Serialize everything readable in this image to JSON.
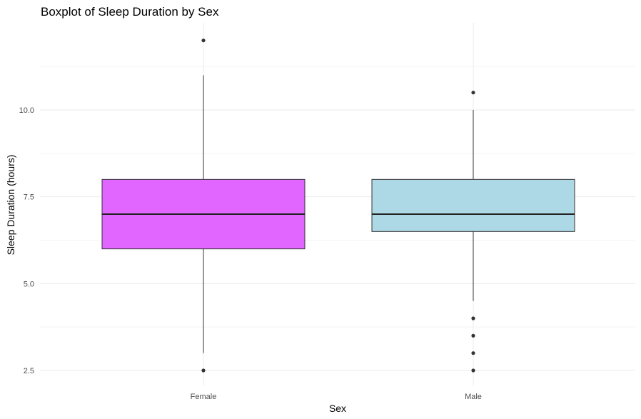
{
  "chart_data": {
    "type": "boxplot",
    "title": "Boxplot of Sleep Duration by Sex",
    "xlabel": "Sex",
    "ylabel": "Sleep Duration (hours)",
    "categories": [
      "Female",
      "Male"
    ],
    "yticks": [
      2.5,
      5.0,
      7.5,
      10.0
    ],
    "ytick_labels": [
      "2.5",
      "5.0",
      "7.5",
      "10.0"
    ],
    "ylim": [
      2.2,
      12.5
    ],
    "grid": true,
    "legend": "none",
    "boxes": [
      {
        "category": "Female",
        "color": "#e066ff",
        "whisker_low": 3.0,
        "q1": 6.0,
        "median": 7.0,
        "q3": 8.0,
        "whisker_high": 11.0,
        "outliers": [
          12.0,
          2.5
        ]
      },
      {
        "category": "Male",
        "color": "#add8e6",
        "whisker_low": 4.5,
        "q1": 6.5,
        "median": 7.0,
        "q3": 8.0,
        "whisker_high": 10.0,
        "outliers": [
          10.5,
          4.0,
          3.5,
          3.0,
          2.5
        ]
      }
    ]
  }
}
